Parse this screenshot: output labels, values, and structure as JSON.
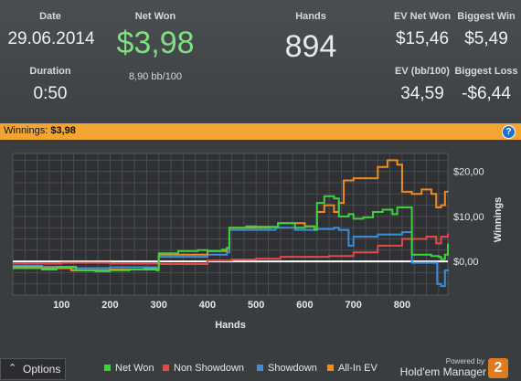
{
  "stats": {
    "date": {
      "label": "Date",
      "value": "29.06.2014"
    },
    "duration": {
      "label": "Duration",
      "value": "0:50"
    },
    "net_won": {
      "label": "Net Won",
      "value": "$3,98",
      "sub": "8,90 bb/100"
    },
    "hands": {
      "label": "Hands",
      "value": "894"
    },
    "ev_net_won": {
      "label": "EV Net Won",
      "value": "$15,46"
    },
    "biggest_win": {
      "label": "Biggest Win",
      "value": "$5,49"
    },
    "ev_bb100": {
      "label": "EV (bb/100)",
      "value": "34,59"
    },
    "biggest_loss": {
      "label": "Biggest Loss",
      "value": "-$6,44"
    }
  },
  "winnings_bar": {
    "label": "Winnings:",
    "value": "$3,98",
    "help": "?"
  },
  "chart_data": {
    "type": "line",
    "xlabel": "Hands",
    "ylabel": "Winnings",
    "xlim": [
      0,
      894
    ],
    "ylim": [
      -7.5,
      24
    ],
    "x_ticks": [
      "100",
      "200",
      "300",
      "400",
      "500",
      "600",
      "700",
      "800"
    ],
    "y_ticks": [
      "$0,00",
      "$10,00",
      "$20,00"
    ],
    "grid": true,
    "series": [
      {
        "name": "Net Won",
        "color": "#3ed13e",
        "points": [
          [
            0,
            -1.5
          ],
          [
            40,
            -1.5
          ],
          [
            60,
            -1.8
          ],
          [
            90,
            -1.2
          ],
          [
            130,
            -2.0
          ],
          [
            170,
            -2.2
          ],
          [
            200,
            -2.0
          ],
          [
            240,
            -1.8
          ],
          [
            270,
            -1.6
          ],
          [
            295,
            -2.0
          ],
          [
            300,
            1.8
          ],
          [
            330,
            1.8
          ],
          [
            340,
            2.3
          ],
          [
            380,
            2.5
          ],
          [
            400,
            2.3
          ],
          [
            430,
            2.6
          ],
          [
            440,
            3.0
          ],
          [
            445,
            7.5
          ],
          [
            480,
            7.8
          ],
          [
            500,
            7.5
          ],
          [
            530,
            7.6
          ],
          [
            545,
            8.5
          ],
          [
            580,
            7.5
          ],
          [
            600,
            7.8
          ],
          [
            620,
            7.0
          ],
          [
            625,
            13.0
          ],
          [
            640,
            14.5
          ],
          [
            660,
            14.0
          ],
          [
            670,
            10.0
          ],
          [
            690,
            10.5
          ],
          [
            700,
            9.5
          ],
          [
            720,
            9.8
          ],
          [
            740,
            11.0
          ],
          [
            760,
            11.5
          ],
          [
            780,
            10.5
          ],
          [
            790,
            12.0
          ],
          [
            810,
            12.0
          ],
          [
            820,
            1.5
          ],
          [
            860,
            1.2
          ],
          [
            875,
            1.0
          ],
          [
            880,
            0.5
          ],
          [
            888,
            1.5
          ],
          [
            894,
            3.98
          ]
        ]
      },
      {
        "name": "Non Showdown",
        "color": "#e24a4a",
        "points": [
          [
            0,
            -0.5
          ],
          [
            100,
            -0.3
          ],
          [
            200,
            -0.5
          ],
          [
            300,
            -0.6
          ],
          [
            400,
            0.2
          ],
          [
            450,
            0.4
          ],
          [
            500,
            0.6
          ],
          [
            550,
            1.0
          ],
          [
            600,
            1.0
          ],
          [
            650,
            1.2
          ],
          [
            700,
            2.0
          ],
          [
            750,
            3.5
          ],
          [
            800,
            5.0
          ],
          [
            850,
            5.5
          ],
          [
            870,
            4.0
          ],
          [
            880,
            5.5
          ],
          [
            894,
            6.2
          ]
        ]
      },
      {
        "name": "Showdown",
        "color": "#3a8edc",
        "points": [
          [
            0,
            -1.0
          ],
          [
            60,
            -1.2
          ],
          [
            120,
            -1.5
          ],
          [
            200,
            -1.3
          ],
          [
            295,
            -1.5
          ],
          [
            300,
            1.0
          ],
          [
            400,
            1.5
          ],
          [
            440,
            2.0
          ],
          [
            445,
            7.0
          ],
          [
            500,
            7.0
          ],
          [
            540,
            7.5
          ],
          [
            580,
            7.0
          ],
          [
            625,
            7.2
          ],
          [
            660,
            7.5
          ],
          [
            670,
            7.0
          ],
          [
            690,
            3.5
          ],
          [
            700,
            5.5
          ],
          [
            750,
            6.0
          ],
          [
            800,
            6.5
          ],
          [
            820,
            -0.3
          ],
          [
            860,
            -0.3
          ],
          [
            872,
            -5.0
          ],
          [
            880,
            -5.5
          ],
          [
            888,
            -2.0
          ],
          [
            894,
            -2.2
          ]
        ]
      },
      {
        "name": "All-In EV",
        "color": "#f08a24",
        "points": [
          [
            0,
            -1.2
          ],
          [
            60,
            -1.5
          ],
          [
            120,
            -2.0
          ],
          [
            200,
            -1.8
          ],
          [
            295,
            -1.8
          ],
          [
            300,
            1.5
          ],
          [
            400,
            2.3
          ],
          [
            440,
            3.0
          ],
          [
            445,
            7.5
          ],
          [
            500,
            7.7
          ],
          [
            545,
            8.5
          ],
          [
            600,
            7.8
          ],
          [
            620,
            7.2
          ],
          [
            625,
            11.0
          ],
          [
            640,
            12.5
          ],
          [
            660,
            11.0
          ],
          [
            670,
            13.0
          ],
          [
            680,
            18.0
          ],
          [
            700,
            18.5
          ],
          [
            720,
            18.5
          ],
          [
            750,
            21.0
          ],
          [
            770,
            22.5
          ],
          [
            790,
            21.5
          ],
          [
            800,
            15.5
          ],
          [
            820,
            15.0
          ],
          [
            840,
            16.0
          ],
          [
            860,
            15.0
          ],
          [
            870,
            12.0
          ],
          [
            880,
            12.5
          ],
          [
            888,
            15.5
          ],
          [
            894,
            15.46
          ]
        ]
      }
    ]
  },
  "footer": {
    "options_label": "Options",
    "legend": [
      {
        "name": "Net Won",
        "color": "#3ed13e"
      },
      {
        "name": "Non Showdown",
        "color": "#e24a4a"
      },
      {
        "name": "Showdown",
        "color": "#3a8edc"
      },
      {
        "name": "All-In EV",
        "color": "#f08a24"
      }
    ],
    "powered_by": "Powered by",
    "brand": "Hold'em Manager",
    "brand_version": "2"
  }
}
